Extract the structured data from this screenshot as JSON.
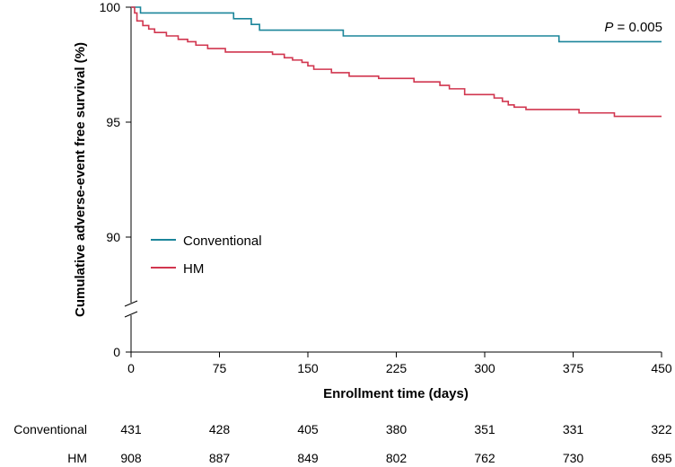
{
  "chart_data": {
    "type": "line",
    "subtype": "kaplan-meier",
    "xlabel": "Enrollment time (days)",
    "ylabel": "Cumulative adverse-event free survival (%)",
    "xlim": [
      0,
      450
    ],
    "ylim": [
      0,
      100
    ],
    "axis_break": true,
    "x_ticks": [
      "0",
      "75",
      "150",
      "225",
      "300",
      "375",
      "450"
    ],
    "y_ticks": [
      "100",
      "95",
      "90",
      "0"
    ],
    "annotation": {
      "p_label": "P",
      "p_value": " = 0.005"
    },
    "legend": [
      "Conventional",
      "HM"
    ],
    "series": [
      {
        "name": "Conventional",
        "color": "#1b859a",
        "points": [
          [
            0,
            100
          ],
          [
            8,
            100
          ],
          [
            8,
            99.75
          ],
          [
            87,
            99.75
          ],
          [
            87,
            99.5
          ],
          [
            102,
            99.5
          ],
          [
            102,
            99.25
          ],
          [
            109,
            99.25
          ],
          [
            109,
            99
          ],
          [
            180,
            99
          ],
          [
            180,
            98.75
          ],
          [
            363,
            98.75
          ],
          [
            363,
            98.5
          ],
          [
            450,
            98.5
          ]
        ]
      },
      {
        "name": "HM",
        "color": "#d1364f",
        "points": [
          [
            0,
            100
          ],
          [
            3,
            100
          ],
          [
            3,
            99.75
          ],
          [
            5,
            99.75
          ],
          [
            5,
            99.4
          ],
          [
            10,
            99.4
          ],
          [
            10,
            99.2
          ],
          [
            15,
            99.2
          ],
          [
            15,
            99.05
          ],
          [
            20,
            99.05
          ],
          [
            20,
            98.9
          ],
          [
            30,
            98.9
          ],
          [
            30,
            98.75
          ],
          [
            40,
            98.75
          ],
          [
            40,
            98.6
          ],
          [
            48,
            98.6
          ],
          [
            48,
            98.5
          ],
          [
            55,
            98.5
          ],
          [
            55,
            98.35
          ],
          [
            65,
            98.35
          ],
          [
            65,
            98.2
          ],
          [
            80,
            98.2
          ],
          [
            80,
            98.05
          ],
          [
            120,
            98.05
          ],
          [
            120,
            97.95
          ],
          [
            130,
            97.95
          ],
          [
            130,
            97.8
          ],
          [
            137,
            97.8
          ],
          [
            137,
            97.7
          ],
          [
            145,
            97.7
          ],
          [
            145,
            97.6
          ],
          [
            150,
            97.6
          ],
          [
            150,
            97.45
          ],
          [
            155,
            97.45
          ],
          [
            155,
            97.3
          ],
          [
            170,
            97.3
          ],
          [
            170,
            97.15
          ],
          [
            185,
            97.15
          ],
          [
            185,
            97.0
          ],
          [
            210,
            97.0
          ],
          [
            210,
            96.9
          ],
          [
            240,
            96.9
          ],
          [
            240,
            96.75
          ],
          [
            262,
            96.75
          ],
          [
            262,
            96.6
          ],
          [
            270,
            96.6
          ],
          [
            270,
            96.45
          ],
          [
            283,
            96.45
          ],
          [
            283,
            96.2
          ],
          [
            308,
            96.2
          ],
          [
            308,
            96.05
          ],
          [
            315,
            96.05
          ],
          [
            315,
            95.9
          ],
          [
            320,
            95.9
          ],
          [
            320,
            95.75
          ],
          [
            325,
            95.75
          ],
          [
            325,
            95.65
          ],
          [
            335,
            95.65
          ],
          [
            335,
            95.55
          ],
          [
            380,
            95.55
          ],
          [
            380,
            95.4
          ],
          [
            410,
            95.4
          ],
          [
            410,
            95.25
          ],
          [
            450,
            95.25
          ]
        ]
      }
    ],
    "risk_table": {
      "rows": [
        {
          "label": "Conventional",
          "values": [
            "431",
            "428",
            "405",
            "380",
            "351",
            "331",
            "322"
          ]
        },
        {
          "label": "HM",
          "values": [
            "908",
            "887",
            "849",
            "802",
            "762",
            "730",
            "695"
          ]
        }
      ]
    }
  }
}
